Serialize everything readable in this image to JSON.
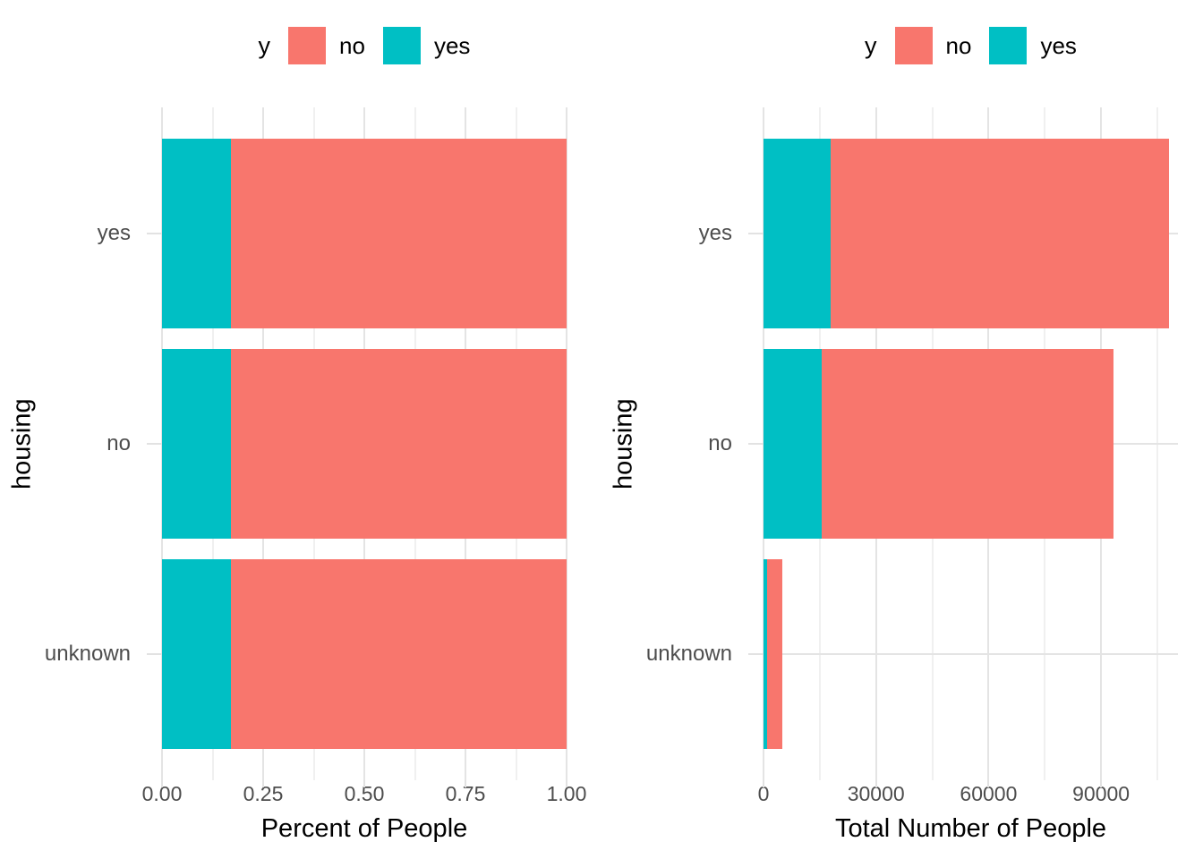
{
  "page": {
    "background": "#ffffff"
  },
  "colors": {
    "no_fill": "#F8766D",
    "yes_fill": "#00BFC4",
    "major_gridline": "#e4e4e4",
    "minor_gridline": "#f0f0f0",
    "tick_mark": "#e2e2e2",
    "tick_label_text": "#4d4d4d",
    "axis_title_text": "#000000"
  },
  "chart_data": [
    {
      "type": "bar",
      "orientation": "horizontal",
      "stacked": true,
      "position": "fill",
      "xlabel": "Percent of People",
      "ylabel": "housing",
      "categories": [
        "yes",
        "no",
        "unknown"
      ],
      "series": [
        {
          "name": "yes",
          "color": "#00BFC4",
          "values": [
            0.17,
            0.17,
            0.17
          ]
        },
        {
          "name": "no",
          "color": "#F8766D",
          "values": [
            0.83,
            0.83,
            0.83
          ]
        }
      ],
      "xlim": [
        0,
        1
      ],
      "x_major_ticks": [
        0,
        0.25,
        0.5,
        0.75,
        1
      ],
      "x_tick_labels": [
        "0.00",
        "0.25",
        "0.50",
        "0.75",
        "1.00"
      ],
      "x_minor_ticks": [
        0.125,
        0.375,
        0.625,
        0.875
      ],
      "grid": true,
      "legend": {
        "title": "y",
        "position": "top",
        "entries": [
          "no",
          "yes"
        ]
      }
    },
    {
      "type": "bar",
      "orientation": "horizontal",
      "stacked": true,
      "position": "stack",
      "xlabel": "Total Number of People",
      "ylabel": "housing",
      "categories": [
        "yes",
        "no",
        "unknown"
      ],
      "series": [
        {
          "name": "yes",
          "color": "#00BFC4",
          "values": [
            18000,
            15500,
            850
          ]
        },
        {
          "name": "no",
          "color": "#F8766D",
          "values": [
            90000,
            77700,
            4050
          ]
        }
      ],
      "totals": [
        108000,
        93200,
        4900
      ],
      "xlim": [
        0,
        110500
      ],
      "x_major_ticks": [
        0,
        30000,
        60000,
        90000
      ],
      "x_tick_labels": [
        "0",
        "30000",
        "60000",
        "90000"
      ],
      "x_minor_ticks": [
        15000,
        45000,
        75000,
        105000
      ],
      "grid": true,
      "legend": {
        "title": "y",
        "position": "top",
        "entries": [
          "no",
          "yes"
        ]
      }
    }
  ]
}
